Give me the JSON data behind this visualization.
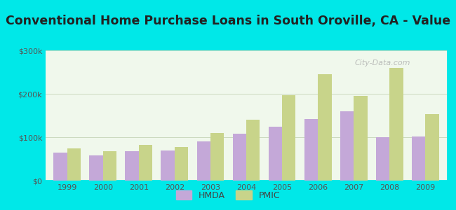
{
  "title": "Conventional Home Purchase Loans in South Oroville, CA - Value",
  "years": [
    1999,
    2000,
    2001,
    2002,
    2003,
    2004,
    2005,
    2006,
    2007,
    2008,
    2009
  ],
  "hmda": [
    65000,
    58000,
    68000,
    70000,
    90000,
    108000,
    125000,
    142000,
    160000,
    100000,
    102000
  ],
  "pmic": [
    75000,
    68000,
    82000,
    78000,
    110000,
    140000,
    197000,
    245000,
    195000,
    260000,
    153000
  ],
  "hmda_color": "#c4a8d8",
  "pmic_color": "#c8d48a",
  "ylim": [
    0,
    300000
  ],
  "yticks": [
    0,
    100000,
    200000,
    300000
  ],
  "ytick_labels": [
    "$0",
    "$100k",
    "$200k",
    "$300k"
  ],
  "title_fontsize": 12.5,
  "watermark": "City-Data.com",
  "legend_labels": [
    "HMDA",
    "PMIC"
  ],
  "bar_width": 0.38,
  "outer_bg": "#00e8e8",
  "plot_bg": "#f0f8ec",
  "title_color": "#222222",
  "tick_color": "#555555",
  "grid_color": "#bbccaa"
}
